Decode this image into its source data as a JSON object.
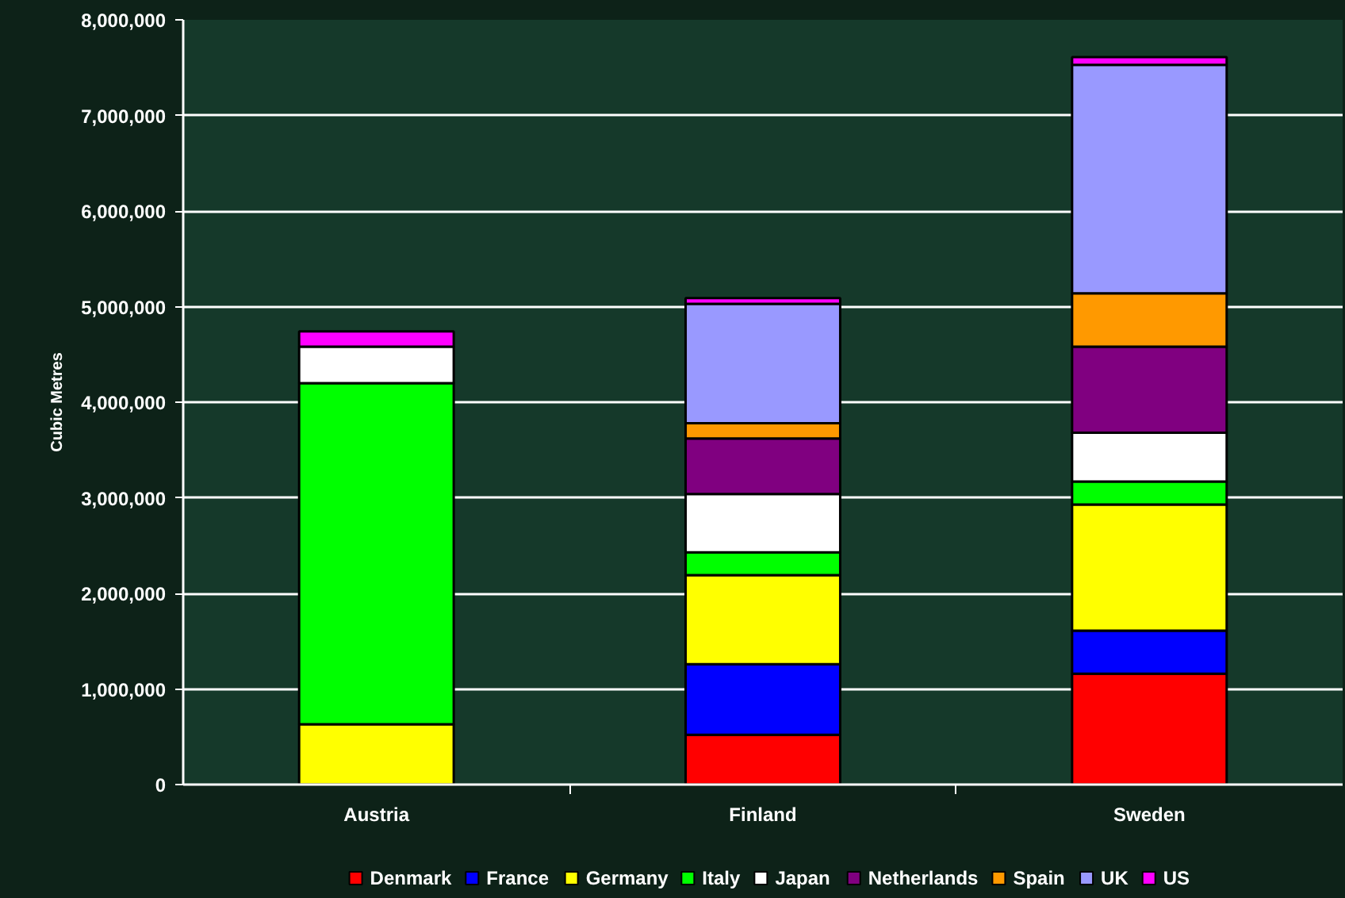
{
  "chart_data": {
    "type": "bar",
    "stacked": true,
    "ylabel": "Cubic Metres",
    "categories": [
      "Austria",
      "Finland",
      "Sweden"
    ],
    "ylim": [
      0,
      8000000
    ],
    "yticks": [
      0,
      {
        "value": 1000000,
        "label": "1,000,000"
      },
      {
        "value": 2000000,
        "label": "2,000,000"
      },
      {
        "value": 3000000,
        "label": "3,000,000"
      },
      {
        "value": 4000000,
        "label": "4,000,000"
      },
      {
        "value": 5000000,
        "label": "5,000,000"
      },
      {
        "value": 6000000,
        "label": "6,000,000"
      },
      {
        "value": 7000000,
        "label": "7,000,000"
      },
      {
        "value": 8000000,
        "label": "8,000,000"
      }
    ],
    "grid": "y",
    "legend": "bottom",
    "series": [
      {
        "name": "Denmark",
        "color": "#ff0000",
        "values": [
          null,
          520000,
          1160000
        ]
      },
      {
        "name": "France",
        "color": "#0000ff",
        "values": [
          null,
          740000,
          450000
        ]
      },
      {
        "name": "Germany",
        "color": "#ffff00",
        "values": [
          630000,
          930000,
          1320000
        ]
      },
      {
        "name": "Italy",
        "color": "#00ff00",
        "values": [
          3570000,
          240000,
          240000
        ]
      },
      {
        "name": "Japan",
        "color": "#ffffff",
        "values": [
          380000,
          610000,
          510000
        ]
      },
      {
        "name": "Netherlands",
        "color": "#800080",
        "values": [
          null,
          580000,
          900000
        ]
      },
      {
        "name": "Spain",
        "color": "#ff9900",
        "values": [
          null,
          160000,
          560000
        ]
      },
      {
        "name": "UK",
        "color": "#9999ff",
        "values": [
          null,
          1250000,
          2390000
        ]
      },
      {
        "name": "US",
        "color": "#ff00ff",
        "values": [
          160000,
          60000,
          80000
        ]
      }
    ]
  }
}
